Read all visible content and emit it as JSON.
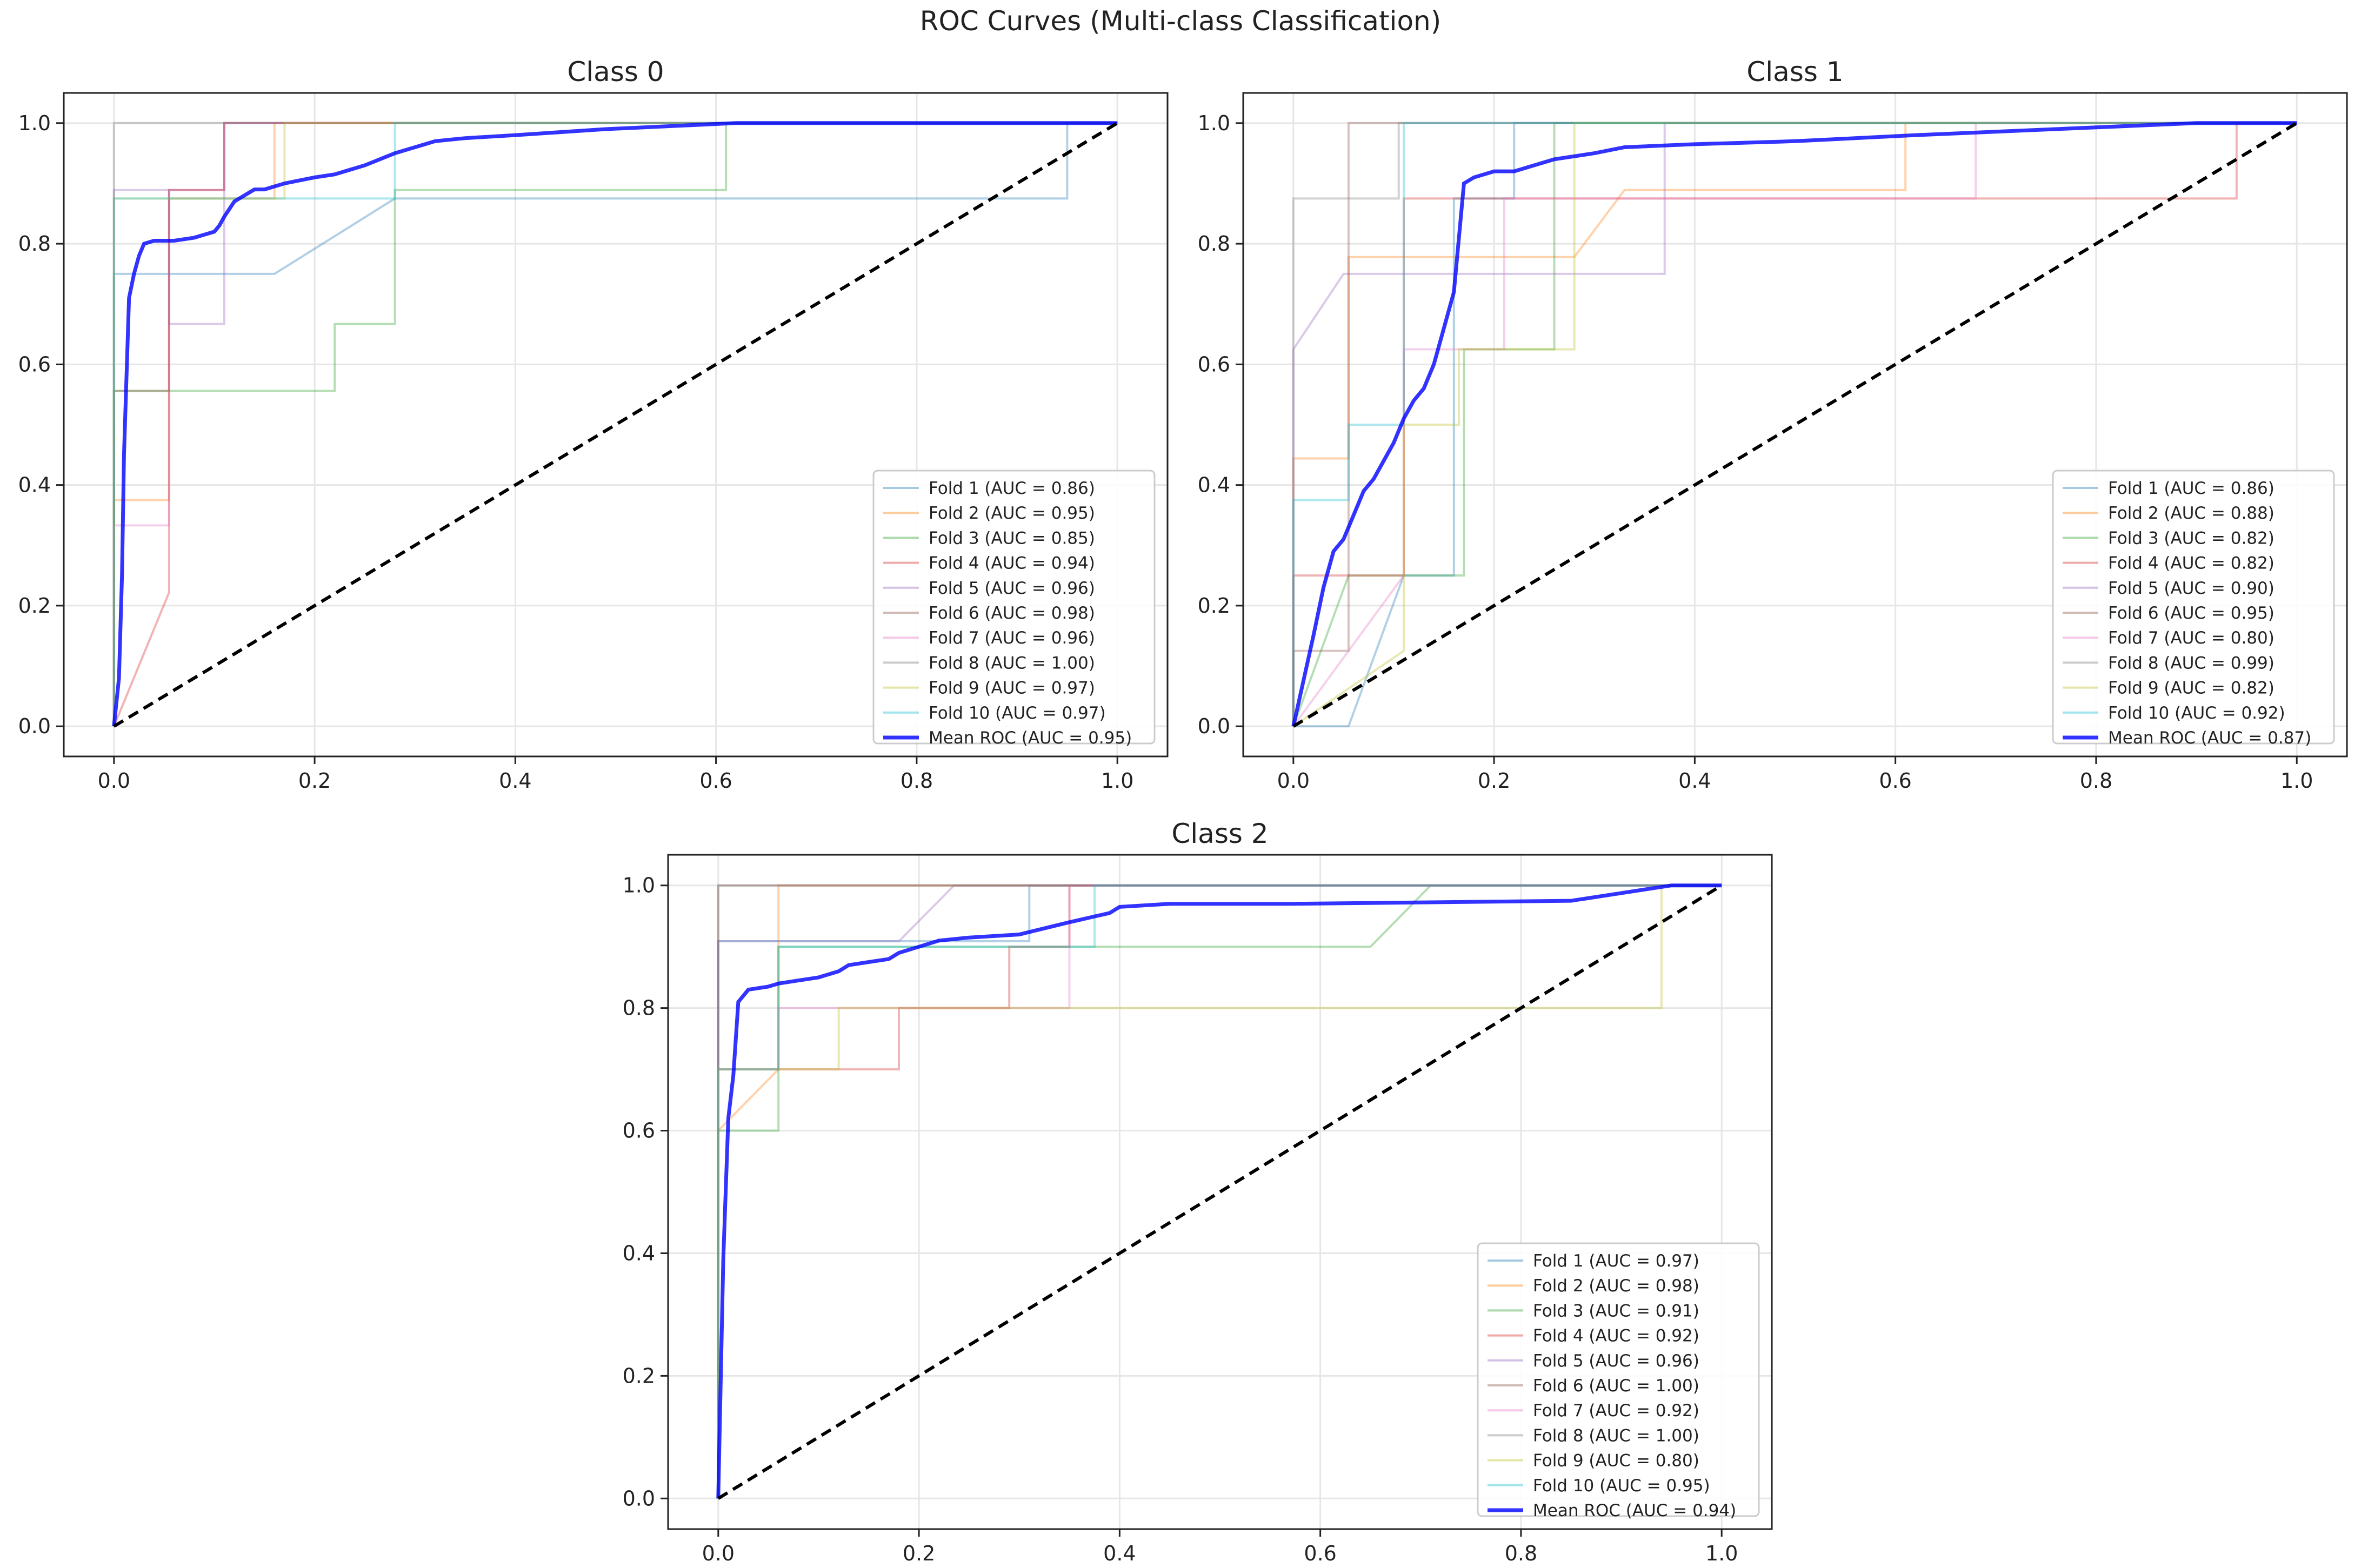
{
  "suptitle": "ROC Curves (Multi-class Classification)",
  "colors": {
    "fold_1": "#1f77b4",
    "fold_2": "#ff7f0e",
    "fold_3": "#2ca02c",
    "fold_4": "#d62728",
    "fold_5": "#9467bd",
    "fold_6": "#8c564b",
    "fold_7": "#e377c2",
    "fold_8": "#7f7f7f",
    "fold_9": "#bcbd22",
    "fold_10": "#17becf",
    "mean": "#0000ff",
    "chance": "#000000",
    "grid": "#e6e6e6"
  },
  "chart_data": [
    {
      "type": "line",
      "title": "Class 0",
      "xlim": [
        -0.05,
        1.05
      ],
      "ylim": [
        -0.05,
        1.05
      ],
      "xticks": [
        "0.0",
        "0.2",
        "0.4",
        "0.6",
        "0.8",
        "1.0"
      ],
      "yticks": [
        "0.0",
        "0.2",
        "0.4",
        "0.6",
        "0.8",
        "1.0"
      ],
      "grid": true,
      "legend_position": "lower-right",
      "series": [
        {
          "name": "Fold 1 (AUC = 0.86)",
          "color_key": "fold_1",
          "x": [
            0,
            0,
            0.16,
            0.28,
            0.95,
            0.95,
            1
          ],
          "y": [
            0,
            0.75,
            0.75,
            0.875,
            0.875,
            1,
            1
          ]
        },
        {
          "name": "Fold 2 (AUC = 0.95)",
          "color_key": "fold_2",
          "x": [
            0,
            0,
            0.055,
            0.055,
            0.16,
            0.16,
            1
          ],
          "y": [
            0,
            0.375,
            0.375,
            0.875,
            0.875,
            1,
            1
          ]
        },
        {
          "name": "Fold 3 (AUC = 0.85)",
          "color_key": "fold_3",
          "x": [
            0,
            0,
            0.22,
            0.22,
            0.28,
            0.28,
            0.61,
            0.61,
            1
          ],
          "y": [
            0,
            0.556,
            0.556,
            0.667,
            0.667,
            0.889,
            0.889,
            1,
            1
          ]
        },
        {
          "name": "Fold 4 (AUC = 0.94)",
          "color_key": "fold_4",
          "x": [
            0,
            0.055,
            0.055,
            0.11,
            0.11,
            1
          ],
          "y": [
            0,
            0.222,
            0.889,
            0.889,
            1,
            1
          ]
        },
        {
          "name": "Fold 5 (AUC = 0.96)",
          "color_key": "fold_5",
          "x": [
            0,
            0,
            0.055,
            0.055,
            0.11,
            0.11,
            1
          ],
          "y": [
            0,
            0.889,
            0.889,
            0.667,
            0.667,
            1,
            1
          ]
        },
        {
          "name": "Fold 6 (AUC = 0.98)",
          "color_key": "fold_6",
          "x": [
            0,
            0,
            0.055,
            0.055,
            0.11,
            0.11,
            1
          ],
          "y": [
            0,
            0.556,
            0.556,
            0.889,
            0.889,
            1,
            1
          ]
        },
        {
          "name": "Fold 7 (AUC = 0.96)",
          "color_key": "fold_7",
          "x": [
            0,
            0,
            0.055,
            0.055,
            0.11,
            0.11,
            1
          ],
          "y": [
            0,
            0.333,
            0.333,
            0.889,
            0.889,
            1,
            1
          ]
        },
        {
          "name": "Fold 8 (AUC = 1.00)",
          "color_key": "fold_8",
          "x": [
            0,
            0,
            1
          ],
          "y": [
            0,
            1,
            1
          ]
        },
        {
          "name": "Fold 9 (AUC = 0.97)",
          "color_key": "fold_9",
          "x": [
            0,
            0,
            0.17,
            0.17,
            1
          ],
          "y": [
            0,
            0.875,
            0.875,
            1,
            1
          ]
        },
        {
          "name": "Fold 10 (AUC = 0.97)",
          "color_key": "fold_10",
          "x": [
            0,
            0,
            0.28,
            0.28,
            1
          ],
          "y": [
            0,
            0.875,
            0.875,
            1,
            1
          ]
        },
        {
          "name": "Mean ROC (AUC = 0.95)",
          "color_key": "mean",
          "mean": true,
          "x": [
            0,
            0.005,
            0.008,
            0.01,
            0.015,
            0.02,
            0.025,
            0.03,
            0.04,
            0.05,
            0.06,
            0.08,
            0.1,
            0.105,
            0.11,
            0.12,
            0.13,
            0.14,
            0.15,
            0.17,
            0.2,
            0.22,
            0.25,
            0.28,
            0.3,
            0.32,
            0.35,
            0.4,
            0.49,
            0.62,
            1
          ],
          "y": [
            0,
            0.08,
            0.25,
            0.45,
            0.71,
            0.75,
            0.78,
            0.8,
            0.805,
            0.805,
            0.805,
            0.81,
            0.82,
            0.83,
            0.845,
            0.87,
            0.88,
            0.89,
            0.89,
            0.9,
            0.91,
            0.915,
            0.93,
            0.95,
            0.96,
            0.97,
            0.975,
            0.98,
            0.99,
            1.0,
            1.0
          ]
        },
        {
          "name": "",
          "color_key": "chance",
          "chance": true,
          "x": [
            0,
            1
          ],
          "y": [
            0,
            1
          ]
        }
      ]
    },
    {
      "type": "line",
      "title": "Class 1",
      "xlim": [
        -0.05,
        1.05
      ],
      "ylim": [
        -0.05,
        1.05
      ],
      "xticks": [
        "0.0",
        "0.2",
        "0.4",
        "0.6",
        "0.8",
        "1.0"
      ],
      "yticks": [
        "0.0",
        "0.2",
        "0.4",
        "0.6",
        "0.8",
        "1.0"
      ],
      "grid": true,
      "legend_position": "lower-right",
      "series": [
        {
          "name": "Fold 1 (AUC = 0.86)",
          "color_key": "fold_1",
          "x": [
            0,
            0.055,
            0.11,
            0.16,
            0.16,
            0.22,
            0.22,
            1
          ],
          "y": [
            0,
            0,
            0.25,
            0.25,
            0.875,
            0.875,
            1,
            1
          ]
        },
        {
          "name": "Fold 2 (AUC = 0.88)",
          "color_key": "fold_2",
          "x": [
            0,
            0,
            0.055,
            0.055,
            0.28,
            0.33,
            0.61,
            0.61,
            1
          ],
          "y": [
            0,
            0.444,
            0.444,
            0.778,
            0.778,
            0.889,
            0.889,
            1,
            1
          ]
        },
        {
          "name": "Fold 3 (AUC = 0.82)",
          "color_key": "fold_3",
          "x": [
            0,
            0.055,
            0.17,
            0.17,
            0.26,
            0.26,
            1
          ],
          "y": [
            0,
            0.25,
            0.25,
            0.625,
            0.625,
            1,
            1
          ]
        },
        {
          "name": "Fold 4 (AUC = 0.82)",
          "color_key": "fold_4",
          "x": [
            0,
            0,
            0.11,
            0.11,
            0.94,
            0.94,
            1
          ],
          "y": [
            0,
            0.25,
            0.25,
            0.875,
            0.875,
            1,
            1
          ]
        },
        {
          "name": "Fold 5 (AUC = 0.90)",
          "color_key": "fold_5",
          "x": [
            0,
            0,
            0.05,
            0.37,
            0.37,
            1
          ],
          "y": [
            0,
            0.625,
            0.75,
            0.75,
            1,
            1
          ]
        },
        {
          "name": "Fold 6 (AUC = 0.95)",
          "color_key": "fold_6",
          "x": [
            0,
            0,
            0.055,
            0.055,
            1
          ],
          "y": [
            0,
            0.125,
            0.125,
            1,
            1
          ]
        },
        {
          "name": "Fold 7 (AUC = 0.80)",
          "color_key": "fold_7",
          "x": [
            0,
            0.11,
            0.11,
            0.21,
            0.21,
            0.68,
            0.68,
            1
          ],
          "y": [
            0,
            0.25,
            0.625,
            0.625,
            0.875,
            0.875,
            1,
            1
          ]
        },
        {
          "name": "Fold 8 (AUC = 0.99)",
          "color_key": "fold_8",
          "x": [
            0,
            0,
            0.105,
            0.105,
            1
          ],
          "y": [
            0,
            0.875,
            0.875,
            1,
            1
          ]
        },
        {
          "name": "Fold 9 (AUC = 0.82)",
          "color_key": "fold_9",
          "x": [
            0,
            0.11,
            0.11,
            0.165,
            0.165,
            0.28,
            0.28,
            1
          ],
          "y": [
            0,
            0.125,
            0.5,
            0.5,
            0.625,
            0.625,
            1,
            1
          ]
        },
        {
          "name": "Fold 10 (AUC = 0.92)",
          "color_key": "fold_10",
          "x": [
            0,
            0,
            0.055,
            0.055,
            0.11,
            0.11,
            1
          ],
          "y": [
            0,
            0.375,
            0.375,
            0.5,
            0.5,
            1,
            1
          ]
        },
        {
          "name": "Mean ROC (AUC = 0.87)",
          "color_key": "mean",
          "mean": true,
          "x": [
            0,
            0.02,
            0.03,
            0.04,
            0.05,
            0.06,
            0.07,
            0.08,
            0.09,
            0.1,
            0.11,
            0.12,
            0.13,
            0.14,
            0.15,
            0.16,
            0.17,
            0.18,
            0.2,
            0.22,
            0.26,
            0.3,
            0.33,
            0.4,
            0.5,
            0.62,
            0.9,
            1
          ],
          "y": [
            0,
            0.15,
            0.23,
            0.29,
            0.31,
            0.35,
            0.39,
            0.41,
            0.44,
            0.47,
            0.51,
            0.54,
            0.56,
            0.6,
            0.66,
            0.72,
            0.9,
            0.91,
            0.92,
            0.92,
            0.94,
            0.95,
            0.96,
            0.965,
            0.97,
            0.98,
            1.0,
            1.0
          ]
        },
        {
          "name": "",
          "color_key": "chance",
          "chance": true,
          "x": [
            0,
            1
          ],
          "y": [
            0,
            1
          ]
        }
      ]
    },
    {
      "type": "line",
      "title": "Class 2",
      "xlim": [
        -0.05,
        1.05
      ],
      "ylim": [
        -0.05,
        1.05
      ],
      "xticks": [
        "0.0",
        "0.2",
        "0.4",
        "0.6",
        "0.8",
        "1.0"
      ],
      "yticks": [
        "0.0",
        "0.2",
        "0.4",
        "0.6",
        "0.8",
        "1.0"
      ],
      "grid": true,
      "legend_position": "lower-right",
      "series": [
        {
          "name": "Fold 1 (AUC = 0.97)",
          "color_key": "fold_1",
          "x": [
            0,
            0,
            0.31,
            0.31,
            1
          ],
          "y": [
            0,
            0.909,
            0.909,
            1,
            1
          ]
        },
        {
          "name": "Fold 2 (AUC = 0.98)",
          "color_key": "fold_2",
          "x": [
            0,
            0,
            0.06,
            0.06,
            1
          ],
          "y": [
            0,
            0.6,
            0.7,
            1,
            1
          ]
        },
        {
          "name": "Fold 3 (AUC = 0.91)",
          "color_key": "fold_3",
          "x": [
            0,
            0,
            0.06,
            0.06,
            0.65,
            0.71,
            1
          ],
          "y": [
            0,
            0.6,
            0.6,
            0.9,
            0.9,
            1,
            1
          ]
        },
        {
          "name": "Fold 4 (AUC = 0.92)",
          "color_key": "fold_4",
          "x": [
            0,
            0,
            0.18,
            0.18,
            0.29,
            0.29,
            0.35,
            0.35,
            1
          ],
          "y": [
            0,
            0.7,
            0.7,
            0.8,
            0.8,
            0.9,
            0.9,
            1,
            1
          ]
        },
        {
          "name": "Fold 5 (AUC = 0.96)",
          "color_key": "fold_5",
          "x": [
            0,
            0,
            0.18,
            0.235,
            1
          ],
          "y": [
            0,
            0.909,
            0.909,
            1,
            1
          ]
        },
        {
          "name": "Fold 6 (AUC = 1.00)",
          "color_key": "fold_6",
          "x": [
            0,
            0,
            1
          ],
          "y": [
            0,
            1,
            1
          ]
        },
        {
          "name": "Fold 7 (AUC = 0.92)",
          "color_key": "fold_7",
          "x": [
            0,
            0,
            0.06,
            0.06,
            0.35,
            0.35,
            1
          ],
          "y": [
            0,
            0.7,
            0.7,
            0.8,
            0.8,
            1,
            1
          ]
        },
        {
          "name": "Fold 8 (AUC = 1.00)",
          "color_key": "fold_8",
          "x": [
            0,
            0,
            1
          ],
          "y": [
            0,
            1,
            1
          ]
        },
        {
          "name": "Fold 9 (AUC = 0.80)",
          "color_key": "fold_9",
          "x": [
            0,
            0,
            0.12,
            0.12,
            0.94,
            0.94,
            1
          ],
          "y": [
            0,
            0.7,
            0.7,
            0.8,
            0.8,
            1,
            1
          ]
        },
        {
          "name": "Fold 10 (AUC = 0.95)",
          "color_key": "fold_10",
          "x": [
            0,
            0,
            0.06,
            0.06,
            0.375,
            0.375,
            1
          ],
          "y": [
            0,
            0.7,
            0.7,
            0.9,
            0.9,
            1,
            1
          ]
        },
        {
          "name": "Mean ROC (AUC = 0.94)",
          "color_key": "mean",
          "mean": true,
          "x": [
            0,
            0.005,
            0.01,
            0.015,
            0.02,
            0.03,
            0.05,
            0.06,
            0.08,
            0.1,
            0.12,
            0.13,
            0.15,
            0.17,
            0.18,
            0.2,
            0.22,
            0.25,
            0.3,
            0.35,
            0.39,
            0.4,
            0.45,
            0.57,
            0.85,
            0.95,
            1
          ],
          "y": [
            0,
            0.39,
            0.62,
            0.69,
            0.81,
            0.83,
            0.835,
            0.84,
            0.845,
            0.85,
            0.86,
            0.87,
            0.875,
            0.88,
            0.89,
            0.9,
            0.91,
            0.915,
            0.92,
            0.94,
            0.955,
            0.965,
            0.97,
            0.97,
            0.975,
            1.0,
            1.0
          ]
        },
        {
          "name": "",
          "color_key": "chance",
          "chance": true,
          "x": [
            0,
            1
          ],
          "y": [
            0,
            1
          ]
        }
      ]
    }
  ]
}
